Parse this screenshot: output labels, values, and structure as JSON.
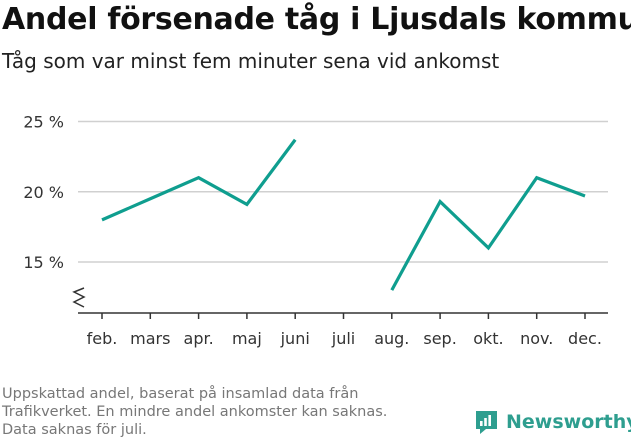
{
  "title": "Andel försenade tåg i Ljusdals kommun",
  "subtitle": "Tåg som var minst fem minuter sena vid ankomst",
  "footnote": [
    "Uppskattad andel, baserat på insamlad data från",
    "Trafikverket. En mindre andel ankomster kan saknas.",
    "Data saknas för juli."
  ],
  "brand": {
    "name": "Newsworthy",
    "icon": "newsworthy-logo-icon"
  },
  "colors": {
    "line": "#0f9e8f",
    "grid": "#d0d0d0",
    "axis": "#333333",
    "brand": "#2e9e8f"
  },
  "chart_data": {
    "type": "line",
    "categories": [
      "feb.",
      "mars",
      "apr.",
      "maj",
      "juni",
      "juli",
      "aug.",
      "sep.",
      "okt.",
      "nov.",
      "dec."
    ],
    "series": [
      {
        "values": [
          18.0,
          19.5,
          21.0,
          19.1,
          23.7,
          null,
          13.0,
          19.3,
          16.0,
          21.0,
          19.7
        ]
      }
    ],
    "y_ticks": [
      15,
      20,
      25
    ],
    "y_tick_labels": [
      "15 %",
      "20 %",
      "25 %"
    ],
    "ylim": [
      12,
      26
    ],
    "y_axis_break": true,
    "grid": true,
    "legend": false
  }
}
